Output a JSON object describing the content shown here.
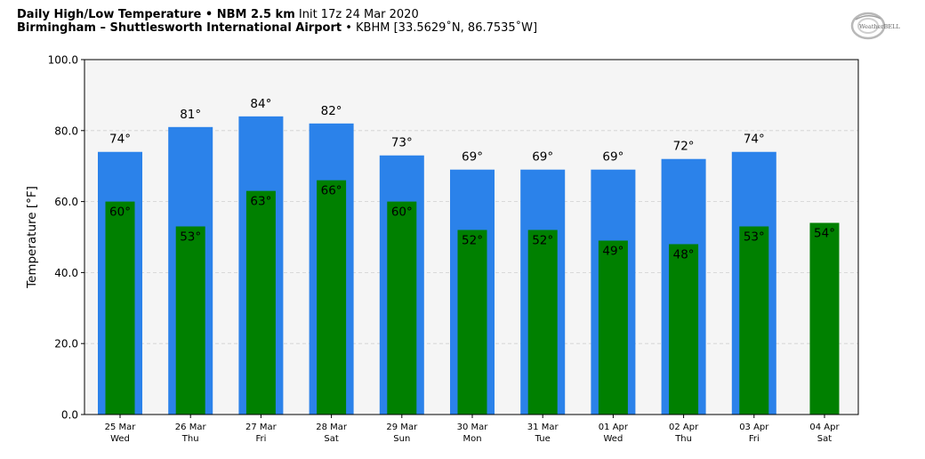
{
  "header": {
    "title_bold": "Daily High/Low Temperature • NBM 2.5 km",
    "title_init": "Init 17z 24 Mar 2020",
    "location_bold": "Birmingham – Shuttlesworth International Airport",
    "location_detail": "• KBHM [33.5629˚N, 86.7535˚W]",
    "logo_text": "WeatherBELL"
  },
  "chart_data": {
    "type": "bar",
    "ylabel": "Temperature [°F]",
    "ylim": [
      0,
      100
    ],
    "yticks": [
      "0.0",
      "20.0",
      "40.0",
      "60.0",
      "80.0",
      "100.0"
    ],
    "grid": true,
    "categories": [
      {
        "date": "25 Mar",
        "day": "Wed"
      },
      {
        "date": "26 Mar",
        "day": "Thu"
      },
      {
        "date": "27 Mar",
        "day": "Fri"
      },
      {
        "date": "28 Mar",
        "day": "Sat"
      },
      {
        "date": "29 Mar",
        "day": "Sun"
      },
      {
        "date": "30 Mar",
        "day": "Mon"
      },
      {
        "date": "31 Mar",
        "day": "Tue"
      },
      {
        "date": "01 Apr",
        "day": "Wed"
      },
      {
        "date": "02 Apr",
        "day": "Thu"
      },
      {
        "date": "03 Apr",
        "day": "Fri"
      },
      {
        "date": "04 Apr",
        "day": "Sat"
      }
    ],
    "series": [
      {
        "key": "high",
        "color": "#2b82ea",
        "values": [
          74,
          81,
          84,
          82,
          73,
          69,
          69,
          69,
          72,
          74,
          null
        ],
        "labels": [
          "74°",
          "81°",
          "84°",
          "82°",
          "73°",
          "69°",
          "69°",
          "69°",
          "72°",
          "74°",
          ""
        ]
      },
      {
        "key": "low",
        "color": "#008000",
        "values": [
          60,
          53,
          63,
          66,
          60,
          52,
          52,
          49,
          48,
          53,
          54
        ],
        "labels": [
          "60°",
          "53°",
          "63°",
          "66°",
          "60°",
          "52°",
          "52°",
          "49°",
          "48°",
          "53°",
          "54°"
        ]
      }
    ],
    "plot_background": "#f5f5f5"
  }
}
